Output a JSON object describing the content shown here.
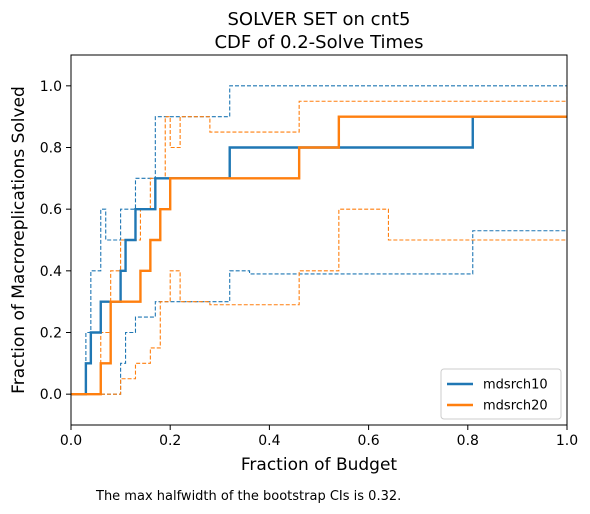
{
  "chart_data": {
    "type": "line",
    "step": true,
    "title": "SOLVER SET on cnt5",
    "subtitle": "CDF of 0.2-Solve Times",
    "xlabel": "Fraction of Budget",
    "ylabel": "Fraction of Macroreplications Solved",
    "xlim": [
      0,
      1
    ],
    "ylim": [
      -0.1,
      1.1
    ],
    "xticks": [
      "0.0",
      "0.2",
      "0.4",
      "0.6",
      "0.8",
      "1.0"
    ],
    "yticks": [
      "0.0",
      "0.2",
      "0.4",
      "0.6",
      "0.8",
      "1.0"
    ],
    "grid": false,
    "legend_position": "lower right",
    "series": [
      {
        "name": "mdsrch10",
        "color": "#1f77b4",
        "x": [
          0,
          0.03,
          0.04,
          0.06,
          0.1,
          0.11,
          0.13,
          0.17,
          0.32,
          0.81,
          1.0
        ],
        "y": [
          0,
          0.1,
          0.2,
          0.3,
          0.4,
          0.5,
          0.6,
          0.7,
          0.8,
          0.9,
          0.9
        ],
        "ci_upper": {
          "x": [
            0,
            0.03,
            0.04,
            0.06,
            0.07,
            0.1,
            0.13,
            0.17,
            0.32,
            1.0
          ],
          "y": [
            0,
            0.2,
            0.4,
            0.6,
            0.5,
            0.6,
            0.7,
            0.9,
            1.0,
            1.0
          ]
        },
        "ci_lower": {
          "x": [
            0,
            0.1,
            0.11,
            0.13,
            0.17,
            0.32,
            0.36,
            0.81,
            1.0
          ],
          "y": [
            0,
            0.1,
            0.2,
            0.25,
            0.3,
            0.4,
            0.39,
            0.53,
            0.53
          ]
        }
      },
      {
        "name": "mdsrch20",
        "color": "#ff7f0e",
        "x": [
          0,
          0.06,
          0.08,
          0.1,
          0.14,
          0.16,
          0.18,
          0.2,
          0.46,
          0.54,
          1.0
        ],
        "y": [
          0,
          0.1,
          0.3,
          0.3,
          0.4,
          0.5,
          0.6,
          0.7,
          0.8,
          0.9,
          0.9
        ],
        "ci_upper": {
          "x": [
            0,
            0.06,
            0.08,
            0.1,
            0.14,
            0.16,
            0.19,
            0.2,
            0.22,
            0.28,
            0.46,
            1.0
          ],
          "y": [
            0,
            0.2,
            0.4,
            0.5,
            0.6,
            0.7,
            0.9,
            0.8,
            0.9,
            0.85,
            0.95,
            1.0
          ]
        },
        "ci_lower": {
          "x": [
            0,
            0.1,
            0.13,
            0.16,
            0.18,
            0.2,
            0.22,
            0.28,
            0.46,
            0.54,
            0.64,
            1.0
          ],
          "y": [
            0,
            0.05,
            0.1,
            0.15,
            0.3,
            0.4,
            0.3,
            0.29,
            0.4,
            0.6,
            0.5,
            0.5
          ]
        }
      }
    ]
  },
  "footnote": "The max halfwidth of the bootstrap CIs is 0.32."
}
